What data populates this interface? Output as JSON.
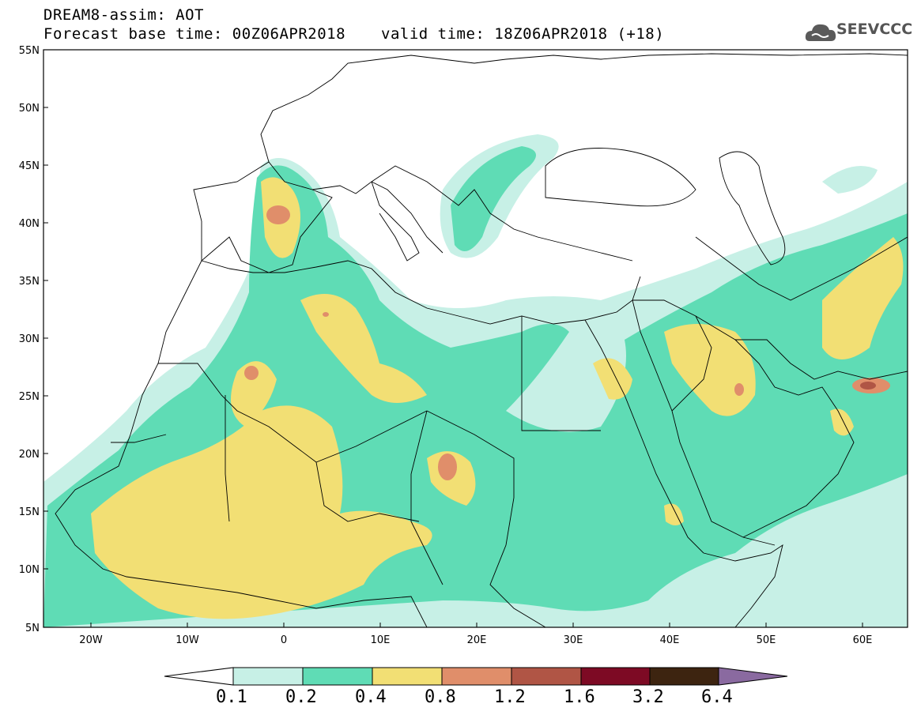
{
  "header": {
    "line1": "DREAM8-assim: AOT",
    "line2": "Forecast base time: 00Z06APR2018",
    "valid": "valid time: 18Z06APR2018 (+18)",
    "logo_text": "SEEVCCC",
    "logo_icon": "cloud-icon"
  },
  "map": {
    "lat_labels": [
      "55N",
      "50N",
      "45N",
      "40N",
      "35N",
      "30N",
      "25N",
      "20N",
      "15N",
      "10N",
      "5N"
    ],
    "lon_labels": [
      "20W",
      "10W",
      "0",
      "10E",
      "20E",
      "30E",
      "40E",
      "50E",
      "60E"
    ]
  },
  "colorbar": {
    "labels": [
      "0.1",
      "0.2",
      "0.4",
      "0.8",
      "1.2",
      "1.6",
      "3.2",
      "6.4"
    ],
    "colors": [
      "#ffffff",
      "#c7f0e6",
      "#5fdcb5",
      "#f2df74",
      "#e08e6a",
      "#b05545",
      "#7d0a24",
      "#3d2410",
      "#8a6aa0"
    ]
  },
  "colors": {
    "band_01_02": "#c7f0e6",
    "band_02_04": "#5fdcb5",
    "band_04_08": "#f2df74",
    "band_08_12": "#e08e6a",
    "border": "#000000"
  }
}
